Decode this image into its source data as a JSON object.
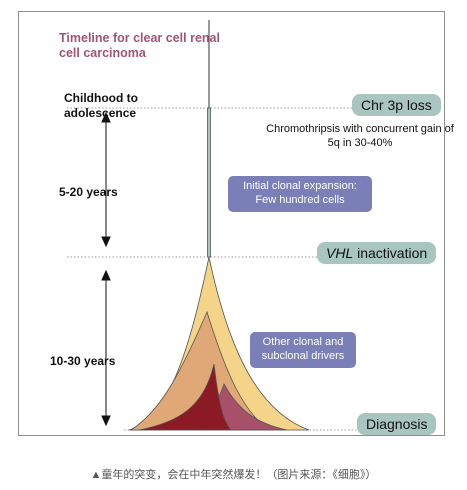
{
  "title": "Timeline for clear cell renal cell carcinoma",
  "stage": "Childhood to adolescence",
  "periods": [
    "5-20 years",
    "10-30 years"
  ],
  "events": {
    "chr3p": "Chr 3p loss",
    "vhl_gene": "VHL",
    "vhl_rest": " inactivation",
    "diagnosis": "Diagnosis"
  },
  "note": "Chromothripsis with concurrent gain of 5q in 30-40%",
  "boxes": {
    "initial": "Initial clonal expansion: Few hundred cells",
    "other": "Other clonal and subclonal drivers"
  },
  "caption": "▲童年的突变，会在中年突然爆发！（图片来源：《细胞》）",
  "colors": {
    "title": "#a15574",
    "pill": "#a8c6bf",
    "box": "#7a7fb8",
    "clone_outer": "#f3d488",
    "clone_mid": "#e0a877",
    "clone_right": "#a8506a",
    "clone_left": "#8b1a24"
  }
}
